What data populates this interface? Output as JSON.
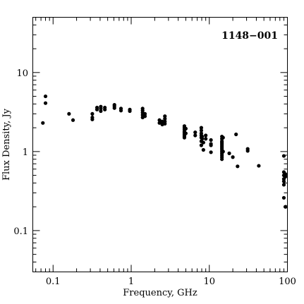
{
  "chart_data": {
    "type": "scatter",
    "title": "1148−001",
    "xlabel": "Frequency, GHz",
    "ylabel": "Flux Density, Jy",
    "xscale": "log",
    "yscale": "log",
    "xlim": [
      0.055,
      100
    ],
    "ylim": [
      0.03,
      50
    ],
    "grid": false,
    "legend": "none",
    "x_tick_labels": [
      {
        "value": 0.1,
        "label": "0.1"
      },
      {
        "value": 1,
        "label": "1"
      },
      {
        "value": 10,
        "label": "10"
      },
      {
        "value": 100,
        "label": "100"
      }
    ],
    "y_tick_labels": [
      {
        "value": 0.1,
        "label": "0.1"
      },
      {
        "value": 1,
        "label": "1"
      },
      {
        "value": 10,
        "label": "10"
      }
    ],
    "series": [
      {
        "points": [
          [
            0.074,
            2.3
          ],
          [
            0.08,
            5.0
          ],
          [
            0.08,
            4.1
          ],
          [
            0.16,
            3.0
          ],
          [
            0.18,
            2.5
          ],
          [
            0.318,
            3.0
          ],
          [
            0.318,
            2.7
          ],
          [
            0.318,
            2.55
          ],
          [
            0.365,
            3.6
          ],
          [
            0.365,
            3.4
          ],
          [
            0.408,
            3.5
          ],
          [
            0.408,
            3.7
          ],
          [
            0.408,
            3.25
          ],
          [
            0.46,
            3.6
          ],
          [
            0.46,
            3.4
          ],
          [
            0.61,
            3.9
          ],
          [
            0.61,
            3.75
          ],
          [
            0.61,
            3.55
          ],
          [
            0.74,
            3.5
          ],
          [
            0.74,
            3.3
          ],
          [
            0.96,
            3.4
          ],
          [
            0.96,
            3.25
          ],
          [
            1.4,
            3.5
          ],
          [
            1.4,
            3.3
          ],
          [
            1.4,
            3.1
          ],
          [
            1.4,
            2.9
          ],
          [
            1.4,
            2.7
          ],
          [
            1.5,
            3.0
          ],
          [
            1.5,
            2.8
          ],
          [
            2.3,
            2.5
          ],
          [
            2.3,
            2.3
          ],
          [
            2.5,
            2.2
          ],
          [
            2.5,
            2.4
          ],
          [
            2.7,
            2.8
          ],
          [
            2.7,
            2.6
          ],
          [
            2.7,
            2.4
          ],
          [
            2.7,
            2.25
          ],
          [
            4.8,
            2.1
          ],
          [
            4.8,
            2.0
          ],
          [
            4.8,
            1.9
          ],
          [
            4.8,
            1.8
          ],
          [
            4.8,
            1.75
          ],
          [
            4.8,
            1.7
          ],
          [
            4.8,
            1.65
          ],
          [
            4.8,
            1.6
          ],
          [
            4.8,
            1.55
          ],
          [
            4.8,
            1.5
          ],
          [
            5.0,
            1.95
          ],
          [
            5.0,
            1.7
          ],
          [
            6.6,
            1.75
          ],
          [
            6.6,
            1.6
          ],
          [
            7.9,
            2.0
          ],
          [
            7.9,
            1.85
          ],
          [
            7.9,
            1.7
          ],
          [
            7.9,
            1.6
          ],
          [
            7.9,
            1.5
          ],
          [
            7.9,
            1.35
          ],
          [
            7.9,
            1.2
          ],
          [
            8.1,
            1.55
          ],
          [
            8.1,
            1.45
          ],
          [
            8.4,
            1.3
          ],
          [
            8.4,
            1.05
          ],
          [
            9.0,
            1.6
          ],
          [
            9.0,
            1.45
          ],
          [
            10.5,
            1.4
          ],
          [
            10.5,
            1.25
          ],
          [
            10.5,
            1.2
          ],
          [
            10.5,
            0.98
          ],
          [
            14.5,
            1.55
          ],
          [
            14.5,
            1.45
          ],
          [
            14.5,
            1.35
          ],
          [
            14.5,
            1.3
          ],
          [
            14.5,
            1.25
          ],
          [
            14.5,
            1.2
          ],
          [
            14.5,
            1.15
          ],
          [
            14.5,
            1.1
          ],
          [
            14.5,
            1.05
          ],
          [
            14.5,
            1.0
          ],
          [
            14.5,
            0.95
          ],
          [
            14.5,
            0.9
          ],
          [
            14.5,
            0.85
          ],
          [
            14.5,
            0.8
          ],
          [
            15.0,
            1.5
          ],
          [
            15.0,
            1.0
          ],
          [
            18.0,
            0.95
          ],
          [
            20.0,
            0.85
          ],
          [
            22.0,
            1.65
          ],
          [
            23.0,
            0.65
          ],
          [
            31.0,
            1.08
          ],
          [
            31.0,
            1.02
          ],
          [
            43.0,
            0.66
          ],
          [
            90.0,
            0.88
          ],
          [
            90.0,
            0.55
          ],
          [
            90.0,
            0.5
          ],
          [
            90.0,
            0.45
          ],
          [
            90.0,
            0.42
          ],
          [
            90.0,
            0.38
          ],
          [
            90.0,
            0.26
          ],
          [
            94.0,
            0.52
          ],
          [
            94.0,
            0.48
          ],
          [
            94.0,
            0.2
          ],
          [
            97.0,
            0.2
          ]
        ]
      }
    ]
  }
}
